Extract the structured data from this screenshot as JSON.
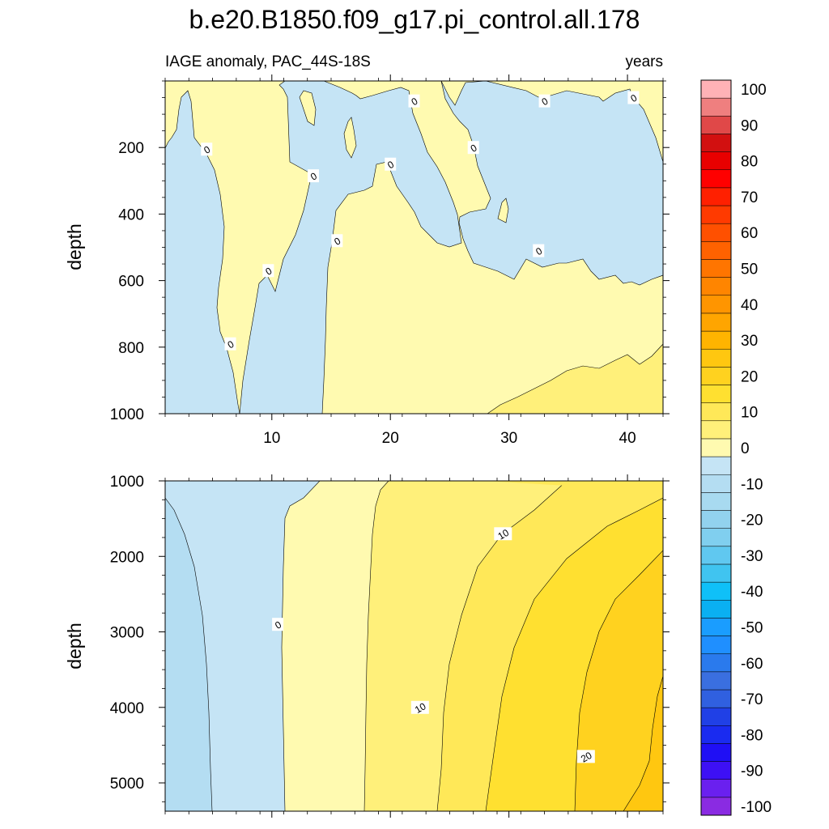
{
  "chart_data": {
    "type": "heatmap",
    "title": "b.e20.B1850.f09_g17.pi_control.all.178",
    "left_string": "IAGE anomaly, PAC_44S-18S",
    "right_string": "years",
    "panels": [
      {
        "name": "upper",
        "ylabel": "depth",
        "xlim": [
          1,
          43
        ],
        "ylim": [
          0,
          1000
        ],
        "y_reversed": true,
        "x_ticks": [
          10,
          20,
          30,
          40
        ],
        "x_tick_labels": [
          "10",
          "20",
          "30",
          "40"
        ],
        "y_ticks": [
          200,
          400,
          600,
          800,
          1000
        ],
        "y_tick_labels": [
          "200",
          "400",
          "600",
          "800",
          "1000"
        ],
        "contour_labels": [
          {
            "text": "0",
            "x": 4.5,
            "y": 205
          },
          {
            "text": "0",
            "x": 13.5,
            "y": 285
          },
          {
            "text": "0",
            "x": 9.7,
            "y": 570
          },
          {
            "text": "0",
            "x": 6.5,
            "y": 790
          },
          {
            "text": "0",
            "x": 15.5,
            "y": 480
          },
          {
            "text": "0",
            "x": 20.0,
            "y": 250
          },
          {
            "text": "0",
            "x": 22.0,
            "y": 60
          },
          {
            "text": "0",
            "x": 27.0,
            "y": 200
          },
          {
            "text": "0",
            "x": 33.0,
            "y": 60
          },
          {
            "text": "0",
            "x": 32.5,
            "y": 510
          },
          {
            "text": "0",
            "x": 40.5,
            "y": 50
          }
        ]
      },
      {
        "name": "lower",
        "ylabel": "depth",
        "xlim": [
          1,
          43
        ],
        "ylim": [
          1000,
          5375
        ],
        "y_reversed": true,
        "x_ticks": [
          10,
          20,
          30,
          40
        ],
        "x_tick_labels": [],
        "y_ticks": [
          1000,
          2000,
          3000,
          4000,
          5000
        ],
        "y_tick_labels": [
          "1000",
          "2000",
          "3000",
          "4000",
          "5000"
        ],
        "contour_labels": [
          {
            "text": "0",
            "x": 10.5,
            "y": 2900
          },
          {
            "text": "10",
            "x": 29.5,
            "y": 1700
          },
          {
            "text": "10",
            "x": 22.5,
            "y": 4000
          },
          {
            "text": "20",
            "x": 36.5,
            "y": 4650
          }
        ]
      }
    ],
    "colorbar": {
      "orientation": "vertical",
      "levels": [
        -100,
        -95,
        -90,
        -85,
        -80,
        -75,
        -70,
        -65,
        -60,
        -55,
        -50,
        -45,
        -40,
        -35,
        -30,
        -25,
        -20,
        -15,
        -10,
        -5,
        0,
        5,
        10,
        15,
        20,
        25,
        30,
        35,
        40,
        45,
        50,
        55,
        60,
        65,
        70,
        75,
        80,
        85,
        90,
        95,
        100
      ],
      "tick_labels": [
        "-100",
        "-90",
        "-80",
        "-70",
        "-60",
        "-50",
        "-40",
        "-30",
        "-20",
        "-10",
        "0",
        "10",
        "20",
        "30",
        "40",
        "50",
        "60",
        "70",
        "80",
        "90",
        "100"
      ],
      "colors": [
        "#8a2be2",
        "#6a20ef",
        "#3d10f5",
        "#1f0ff5",
        "#1a2bf0",
        "#2040e6",
        "#3060e0",
        "#3a6fe0",
        "#2a7aed",
        "#1f8fff",
        "#1a9dff",
        "#0ab0f2",
        "#0fc0f8",
        "#40c4f0",
        "#60c8f0",
        "#80cfef",
        "#92d2ee",
        "#a8daf0",
        "#b4ddf2",
        "#c5e4f5",
        "#fffab0",
        "#fff07a",
        "#ffe858",
        "#ffe030",
        "#ffd21f",
        "#ffc710",
        "#ffb400",
        "#ffa500",
        "#ff9500",
        "#ff8500",
        "#ff7500",
        "#ff6200",
        "#ff5000",
        "#ff3a00",
        "#ff2000",
        "#ff0000",
        "#e80000",
        "#d21010",
        "#e04848",
        "#ef7f7f",
        "#ffb2b6"
      ]
    },
    "fill_colors": {
      "neg_0_5": "#c5e4f5",
      "neg_5_10": "#b4ddf2",
      "pos_0_5": "#fffab0",
      "pos_5_10": "#fff07a",
      "pos_10_15": "#ffe858",
      "pos_15_20": "#ffe030",
      "pos_20_25": "#ffd21f",
      "pos_25_30": "#ffc710"
    }
  }
}
